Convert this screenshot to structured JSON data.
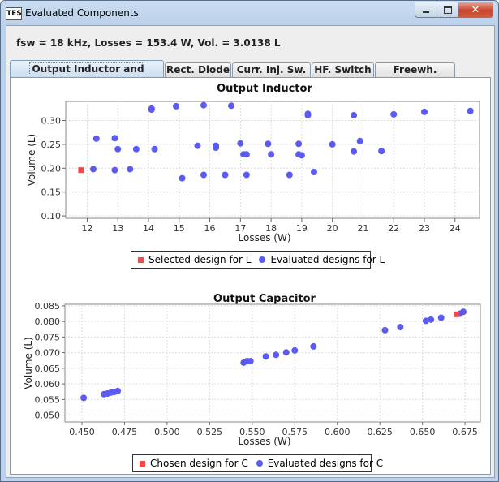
{
  "window": {
    "title": "Evaluated Components",
    "app_icon": "TES",
    "minimize_icon": "minimize-icon",
    "maximize_icon": "maximize-icon",
    "close_icon": "close-icon"
  },
  "summary": "fsw = 18 kHz, Losses = 153.4 W, Vol. = 3.0138 L",
  "tabs": [
    {
      "label": "Output Inductor and Capacitor",
      "active": true
    },
    {
      "label": "Rect. Diode"
    },
    {
      "label": "Curr. Inj. Sw."
    },
    {
      "label": "HF. Switch"
    },
    {
      "label": "Freewh. Diode"
    }
  ],
  "chart_data": [
    {
      "type": "scatter",
      "title": "Output Inductor",
      "xlabel": "Losses (W)",
      "ylabel": "Volume (L)",
      "xlim": [
        11.3,
        24.8
      ],
      "ylim": [
        0.095,
        0.34
      ],
      "x_ticks": [
        "12",
        "13",
        "14",
        "15",
        "16",
        "17",
        "18",
        "19",
        "20",
        "21",
        "22",
        "23",
        "24"
      ],
      "y_ticks": [
        "0.10",
        "0.15",
        "0.20",
        "0.25",
        "0.30"
      ],
      "grid": true,
      "legend_position": "bottom",
      "series": [
        {
          "name": "Selected design for L",
          "marker": "square",
          "color": "#f04a4a",
          "x": [
            11.8
          ],
          "y": [
            0.196
          ]
        },
        {
          "name": "Evaluated designs for L",
          "marker": "circle",
          "color": "#5b5bf2",
          "x": [
            12.2,
            12.3,
            12.9,
            12.9,
            13.0,
            13.4,
            13.6,
            14.1,
            14.1,
            14.2,
            14.9,
            15.1,
            15.6,
            15.8,
            15.8,
            16.2,
            16.2,
            16.5,
            16.7,
            17.0,
            17.1,
            17.2,
            17.2,
            17.9,
            18.0,
            18.6,
            18.9,
            18.9,
            19.0,
            19.2,
            19.2,
            19.4,
            20.0,
            20.7,
            20.7,
            20.9,
            21.6,
            22.0,
            23.0,
            24.5
          ],
          "y": [
            0.198,
            0.262,
            0.263,
            0.196,
            0.24,
            0.198,
            0.24,
            0.325,
            0.323,
            0.24,
            0.33,
            0.179,
            0.247,
            0.332,
            0.186,
            0.247,
            0.243,
            0.186,
            0.331,
            0.252,
            0.229,
            0.186,
            0.229,
            0.251,
            0.229,
            0.186,
            0.251,
            0.229,
            0.227,
            0.314,
            0.311,
            0.192,
            0.25,
            0.311,
            0.235,
            0.257,
            0.236,
            0.313,
            0.318,
            0.32
          ]
        }
      ]
    },
    {
      "type": "scatter",
      "title": "Output Capacitor",
      "xlabel": "Losses (W)",
      "ylabel": "Volume (L)",
      "xlim": [
        0.44,
        0.684
      ],
      "ylim": [
        0.0478,
        0.0855
      ],
      "x_ticks": [
        "0.450",
        "0.475",
        "0.500",
        "0.525",
        "0.550",
        "0.575",
        "0.600",
        "0.625",
        "0.650",
        "0.675"
      ],
      "y_ticks": [
        "0.050",
        "0.055",
        "0.060",
        "0.065",
        "0.070",
        "0.075",
        "0.080",
        "0.085"
      ],
      "grid": true,
      "legend_position": "bottom",
      "series": [
        {
          "name": "Chosen design for C",
          "marker": "square",
          "color": "#f04a4a",
          "x": [
            0.67
          ],
          "y": [
            0.0823
          ]
        },
        {
          "name": "Evaluated designs for C",
          "marker": "circle",
          "color": "#5b5bf2",
          "x": [
            0.451,
            0.463,
            0.465,
            0.467,
            0.469,
            0.471,
            0.545,
            0.547,
            0.549,
            0.558,
            0.564,
            0.57,
            0.575,
            0.586,
            0.628,
            0.637,
            0.652,
            0.655,
            0.661,
            0.672,
            0.674
          ],
          "y": [
            0.0555,
            0.0567,
            0.0569,
            0.0572,
            0.0574,
            0.0577,
            0.0668,
            0.0673,
            0.0673,
            0.0688,
            0.0693,
            0.0701,
            0.0707,
            0.072,
            0.0772,
            0.0782,
            0.0802,
            0.0806,
            0.0812,
            0.0825,
            0.0831
          ]
        }
      ]
    }
  ]
}
